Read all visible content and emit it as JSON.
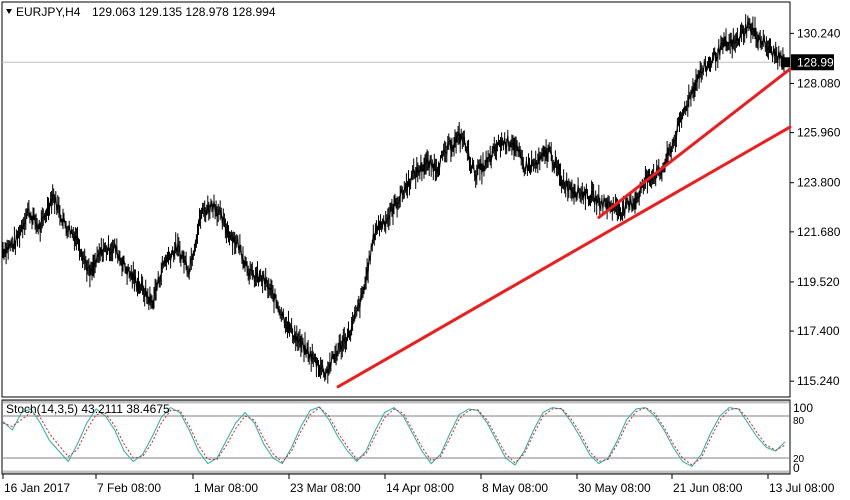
{
  "header": {
    "symbol": "EURJPY,H4",
    "ohlc": "129.063 129.135 128.978 128.994"
  },
  "stoch": {
    "label": "Stoch(14,3,5) 43.2111 38.4675",
    "levels": [
      "100",
      "80",
      "20",
      "0"
    ]
  },
  "colors": {
    "price": "#000000",
    "trendline": "#ee1c1c",
    "stoch_main": "#20b2aa",
    "stoch_signal": "#e02020",
    "level_band": "#c0c0c0",
    "last_price_bg": "#000000"
  },
  "chart_data": [
    {
      "type": "line",
      "series": [
        {
          "values": [
            120.9,
            121.2,
            122.6,
            121.8,
            123.3,
            122.0,
            121.4,
            119.8,
            120.9,
            121.0,
            120.0,
            119.4,
            118.6,
            120.4,
            121.0,
            120.1,
            122.5,
            122.9,
            121.8,
            121.1,
            119.8,
            119.6,
            118.7,
            117.6,
            116.8,
            116.2,
            115.6,
            116.6,
            117.4,
            119.0,
            121.8,
            122.3,
            123.2,
            124.1,
            124.6,
            124.5,
            125.4,
            125.8,
            124.2,
            124.6,
            125.5,
            125.6,
            124.5,
            124.6,
            125.2,
            123.9,
            123.5,
            123.3,
            123.0,
            122.8,
            122.6,
            123.1,
            124.1,
            124.2,
            125.5,
            127.1,
            128.4,
            129.0,
            129.7,
            129.8,
            130.6,
            130.0,
            129.4,
            128.994
          ]
        }
      ],
      "last_price": "128.994",
      "ylim": [
        114.6,
        131.55
      ],
      "yticks": [
        "130.240",
        "128.080",
        "125.960",
        "123.800",
        "121.680",
        "119.520",
        "117.400",
        "115.240"
      ],
      "xticks": [
        "16 Jan 2017",
        "7 Feb 08:00",
        "1 Mar 08:00",
        "23 Mar 08:00",
        "14 Apr 08:00",
        "8 May 08:00",
        "30 May 08:00",
        "21 Jun 08:00",
        "13 Jul 08:00"
      ],
      "trendlines": [
        {
          "from_index": 27,
          "from_price": 115.0,
          "to_index": 63,
          "to_price": 126.2
        },
        {
          "from_index": 48,
          "from_price": 122.3,
          "to_index": 63,
          "to_price": 128.7
        }
      ]
    },
    {
      "type": "line",
      "series": [
        {
          "values": [
            72,
            60,
            85,
            90,
            70,
            45,
            30,
            15,
            40,
            70,
            90,
            80,
            60,
            30,
            15,
            25,
            50,
            78,
            92,
            85,
            60,
            30,
            12,
            20,
            45,
            70,
            85,
            70,
            40,
            20,
            12,
            35,
            65,
            88,
            93,
            75,
            50,
            30,
            15,
            30,
            60,
            85,
            92,
            80,
            55,
            30,
            12,
            25,
            55,
            82,
            90,
            88,
            70,
            45,
            20,
            10,
            30,
            60,
            85,
            92,
            90,
            72,
            50,
            25,
            12,
            20,
            45,
            75,
            90,
            92,
            80,
            60,
            35,
            15,
            8,
            25,
            55,
            80,
            92,
            90,
            70,
            50,
            35,
            30,
            43.21
          ]
        },
        {
          "values": [
            70,
            65,
            75,
            85,
            78,
            55,
            38,
            22,
            32,
            60,
            82,
            84,
            66,
            40,
            20,
            22,
            42,
            70,
            88,
            88,
            66,
            38,
            18,
            18,
            38,
            62,
            80,
            74,
            48,
            26,
            14,
            30,
            58,
            82,
            92,
            80,
            56,
            36,
            18,
            26,
            52,
            78,
            90,
            84,
            60,
            36,
            16,
            22,
            48,
            76,
            88,
            89,
            74,
            50,
            26,
            13,
            26,
            54,
            80,
            90,
            91,
            76,
            56,
            30,
            15,
            18,
            40,
            68,
            86,
            92,
            84,
            64,
            40,
            20,
            10,
            20,
            48,
            74,
            89,
            91,
            76,
            56,
            38,
            31,
            38.47
          ]
        }
      ],
      "ylim": [
        0,
        100
      ],
      "levels": [
        0,
        20,
        80,
        100
      ]
    }
  ]
}
